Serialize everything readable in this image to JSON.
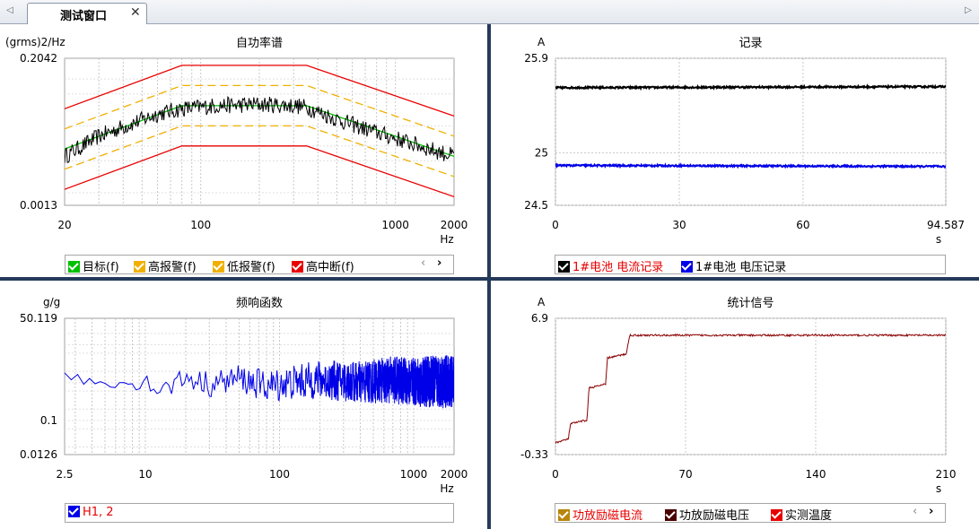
{
  "window": {
    "tab_label": "测试窗口",
    "close_glyph": "✕",
    "nav_prev": "◁",
    "nav_next": "▷"
  },
  "legend_nav": {
    "prev": "‹",
    "next": "›"
  },
  "chart_data": [
    {
      "type": "line",
      "title": "自功率谱",
      "ylabel": "(grms)2/Hz",
      "xlabel": "Hz",
      "x_scale": "log",
      "y_scale": "log",
      "xlim": [
        20,
        2000
      ],
      "ylim": [
        0.0013,
        0.2042
      ],
      "x_ticks": [
        20,
        100,
        1000,
        2000
      ],
      "x_tick_labels": [
        "20",
        "100",
        "1000",
        "2000"
      ],
      "y_tick_labels": [
        "0.2042",
        "0.0013"
      ],
      "grid": true,
      "legend_placement": "bottom",
      "series": [
        {
          "name": "目标(f)",
          "color": "#00c000",
          "kind": "line",
          "x": [
            20,
            80,
            350,
            2000
          ],
          "y": [
            0.009,
            0.04,
            0.04,
            0.007
          ]
        },
        {
          "name": "高报警(f)",
          "color": "#f0b000",
          "kind": "dash",
          "x": [
            20,
            80,
            350,
            2000
          ],
          "y": [
            0.018,
            0.08,
            0.08,
            0.014
          ]
        },
        {
          "name": "低报警(f)",
          "color": "#f0b000",
          "kind": "dash",
          "x": [
            20,
            80,
            350,
            2000
          ],
          "y": [
            0.0045,
            0.02,
            0.02,
            0.0035
          ]
        },
        {
          "name": "高中断(f)",
          "color": "#e80000",
          "kind": "line",
          "x": [
            20,
            80,
            350,
            2000
          ],
          "y": [
            0.036,
            0.16,
            0.16,
            0.028
          ],
          "x2": [
            20,
            80,
            350,
            2000
          ],
          "y2": [
            0.00225,
            0.01,
            0.01,
            0.00175
          ]
        }
      ],
      "measured": {
        "color": "#000000",
        "x": [
          20,
          30,
          45,
          60,
          80,
          120,
          200,
          300,
          350,
          500,
          700,
          1000,
          1500,
          2000
        ],
        "y": [
          0.007,
          0.014,
          0.022,
          0.03,
          0.036,
          0.04,
          0.042,
          0.04,
          0.038,
          0.025,
          0.018,
          0.013,
          0.009,
          0.007
        ],
        "noise": 0.25
      }
    },
    {
      "type": "line",
      "title": "记录",
      "ylabel": "A",
      "xlabel": "s",
      "xlim": [
        0,
        94.587
      ],
      "ylim": [
        24.5,
        25.9
      ],
      "x_tick_labels": [
        "0",
        "30",
        "60",
        "94.587"
      ],
      "x_ticks": [
        0,
        30,
        60,
        94.587
      ],
      "y_ticks": [
        25.9,
        25,
        24.5
      ],
      "y_tick_labels": [
        "25.9",
        "25",
        "24.5"
      ],
      "grid": true,
      "legend_placement": "bottom",
      "series": [
        {
          "name": "1#电池 电流记录",
          "color": "#000000",
          "label_color": "#e80000",
          "x": [
            0,
            94.587
          ],
          "y": [
            25.62,
            25.63
          ],
          "noise": 0.008
        },
        {
          "name": "1#电池 电压记录",
          "color": "#0000e8",
          "label_color": "#000000",
          "x": [
            0,
            94.587
          ],
          "y": [
            24.88,
            24.87
          ],
          "noise": 0.008
        }
      ]
    },
    {
      "type": "line",
      "title": "频响函数",
      "ylabel": "g/g",
      "xlabel": "Hz",
      "x_scale": "log",
      "y_scale": "log",
      "xlim": [
        2.5,
        2000
      ],
      "ylim": [
        0.0126,
        50.119
      ],
      "x_ticks": [
        2.5,
        10,
        100,
        1000,
        2000
      ],
      "x_tick_labels": [
        "2.5",
        "10",
        "100",
        "1000",
        "2000"
      ],
      "y_ticks": [
        50.119,
        0.1,
        0.0126
      ],
      "y_tick_labels": [
        "50.119",
        "0.1",
        "0.0126"
      ],
      "grid": true,
      "legend_placement": "bottom",
      "series": [
        {
          "name": "H1, 2",
          "color": "#0000e8",
          "label_color": "#e80000",
          "x": [
            2.5,
            5,
            7,
            10,
            13,
            20,
            30,
            50,
            80,
            120,
            200,
            400,
            700,
            1000,
            1500,
            2000
          ],
          "y": [
            1.5,
            0.9,
            1.0,
            1.1,
            0.6,
            1.4,
            0.9,
            1.3,
            0.8,
            1.0,
            1.2,
            1.0,
            1.2,
            1.0,
            1.1,
            1.0
          ],
          "noise": 1.2
        }
      ]
    },
    {
      "type": "line",
      "title": "统计信号",
      "ylabel": "A",
      "xlabel": "s",
      "xlim": [
        0,
        210
      ],
      "ylim": [
        -0.33,
        6.9
      ],
      "x_ticks": [
        0,
        70,
        140,
        210
      ],
      "x_tick_labels": [
        "0",
        "70",
        "140",
        "210"
      ],
      "y_ticks": [
        6.9,
        -0.33
      ],
      "y_tick_labels": [
        "6.9",
        "-0.33"
      ],
      "grid": true,
      "legend_placement": "bottom",
      "series": [
        {
          "name": "功放励磁电流",
          "color": "#8b0000",
          "label_color": "#e80000",
          "cb_color": "#b8860b",
          "x": [
            0,
            7,
            8,
            17,
            18,
            27,
            28,
            38,
            40,
            210
          ],
          "y": [
            0.3,
            0.5,
            1.3,
            1.5,
            3.2,
            3.4,
            4.8,
            5.0,
            6.0,
            6.0
          ],
          "noise": 0.05
        },
        {
          "name": "功放励磁电压",
          "color": "#4a0000",
          "label_color": "#000000",
          "cb_color": "#4a0000"
        },
        {
          "name": "实测温度",
          "color": "#e80000",
          "label_color": "#000000",
          "cb_color": "#e80000"
        }
      ]
    }
  ]
}
